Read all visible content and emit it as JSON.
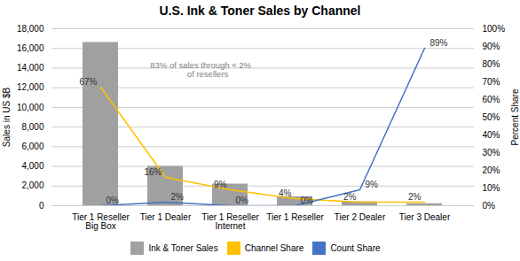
{
  "chart_data": {
    "type": "bar",
    "title": "U.S. Ink & Toner Sales by Channel",
    "categories": [
      "Tier 1 Reseller\nBig Box",
      "Tier 1 Dealer",
      "Tier 1 Reseller\nInternet",
      "Tier 1 Reseller",
      "Tier 2 Dealer",
      "Tier 3 Dealer"
    ],
    "series": [
      {
        "name": "Ink & Toner Sales",
        "type": "bar",
        "color": "#A0A0A0",
        "values": [
          16600,
          4000,
          2200,
          900,
          400,
          200
        ]
      },
      {
        "name": "Channel Share",
        "type": "line",
        "axis": "y2",
        "color": "#FFC000",
        "values": [
          0.67,
          0.16,
          0.09,
          0.04,
          0.02,
          0.02
        ],
        "value_labels": [
          "67%",
          "16%",
          "9%",
          "4%",
          "2%",
          "2%"
        ]
      },
      {
        "name": "Count Share",
        "type": "line",
        "axis": "y2",
        "color": "#4472C4",
        "values": [
          0.0,
          0.02,
          0.0,
          0.0,
          0.09,
          0.89
        ],
        "value_labels": [
          "0%",
          "2%",
          "0%",
          "0%",
          "9%",
          "89%"
        ]
      }
    ],
    "ylabel": "Sales in US $B",
    "y2label": "Percent Share",
    "ylim": [
      0,
      18000
    ],
    "yticks": [
      0,
      {
        "value": 2000,
        "label": "2,000"
      },
      {
        "value": 4000,
        "label": "4,000"
      },
      {
        "value": 6000,
        "label": "6,000"
      },
      {
        "value": 8000,
        "label": "8,000"
      },
      {
        "value": 10000,
        "label": "10,000"
      },
      {
        "value": 12000,
        "label": "12,000"
      },
      {
        "value": 14000,
        "label": "14,000"
      },
      {
        "value": 16000,
        "label": "16,000"
      },
      {
        "value": 18000,
        "label": "18,000"
      }
    ],
    "y2lim": [
      0,
      1.0
    ],
    "y2ticks": [
      {
        "value": 0.0,
        "label": "0%"
      },
      {
        "value": 0.1,
        "label": "10%"
      },
      {
        "value": 0.2,
        "label": "20%"
      },
      {
        "value": 0.3,
        "label": "30%"
      },
      {
        "value": 0.4,
        "label": "40%"
      },
      {
        "value": 0.5,
        "label": "50%"
      },
      {
        "value": 0.6,
        "label": "60%"
      },
      {
        "value": 0.7,
        "label": "70%"
      },
      {
        "value": 0.8,
        "label": "80%"
      },
      {
        "value": 0.9,
        "label": "90%"
      },
      {
        "value": 1.0,
        "label": "100%"
      }
    ],
    "annotations": [
      {
        "text": "83% of sales through < 2%\n      of resellers"
      }
    ],
    "grid": true,
    "legend": "bottom",
    "data_labels": true
  }
}
